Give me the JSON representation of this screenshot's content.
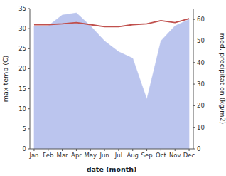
{
  "chart_data": {
    "type": "line",
    "categories": [
      "Jan",
      "Feb",
      "Mar",
      "Apr",
      "May",
      "Jun",
      "Jul",
      "Aug",
      "Sep",
      "Oct",
      "Nov",
      "Dec"
    ],
    "series": [
      {
        "type": "area",
        "axis": "y2",
        "color": "#bbc5ee",
        "values": [
          57,
          57,
          62,
          63,
          57,
          50,
          45,
          42,
          23,
          50,
          57,
          60
        ]
      },
      {
        "type": "line",
        "color": "#c0504d",
        "values": [
          31.0,
          31.0,
          31.2,
          31.5,
          31.0,
          30.5,
          30.5,
          31.0,
          31.2,
          32.0,
          31.5,
          32.5
        ]
      }
    ],
    "xlabel": "date (month)",
    "ylabel": "max temp (C)",
    "y2label": "med. precipitation (kg/m2)",
    "ylim": [
      0,
      35
    ],
    "yticks": [
      0,
      5,
      10,
      15,
      20,
      25,
      30,
      35
    ],
    "y2lim": [
      0,
      65
    ],
    "y2ticks": [
      0,
      10,
      20,
      30,
      40,
      50,
      60
    ],
    "grid": false
  }
}
